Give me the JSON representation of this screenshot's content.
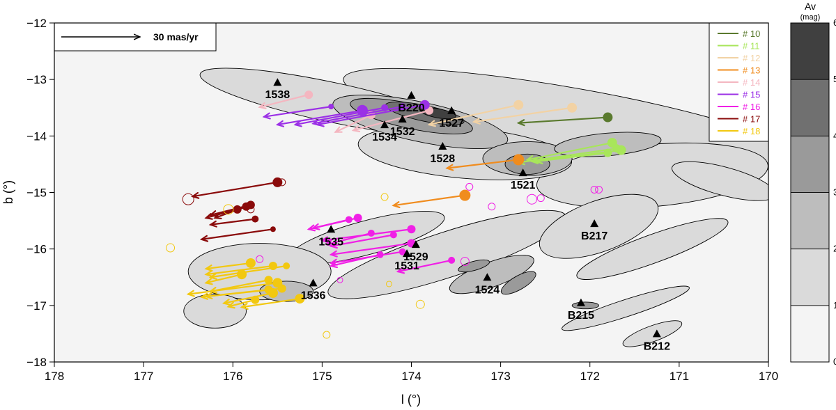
{
  "chart_data": {
    "type": "scatter",
    "xlabel": "l (°)",
    "ylabel": "b (°)",
    "xlim": [
      178,
      170
    ],
    "ylim": [
      -18,
      -12
    ],
    "x_ticks": [
      "178",
      "177",
      "176",
      "175",
      "174",
      "173",
      "172",
      "171",
      "170"
    ],
    "y_ticks": [
      "−12",
      "−13",
      "−14",
      "−15",
      "−16",
      "−17",
      "−18"
    ],
    "scale_bar": {
      "label": "30 mas/yr"
    },
    "colorbar": {
      "title": "Av",
      "unit": "(mag)",
      "ticks": [
        "0",
        "1",
        "2",
        "3",
        "4",
        "5",
        "6"
      ],
      "colors": [
        "#f4f4f4",
        "#dadada",
        "#bdbdbd",
        "#9a9a9a",
        "#707070",
        "#404040"
      ]
    },
    "legend": [
      {
        "label": "# 10",
        "color": "#5a7a2e"
      },
      {
        "label": "# 11",
        "color": "#a8e65a"
      },
      {
        "label": "# 12",
        "color": "#f2d2a4"
      },
      {
        "label": "# 13",
        "color": "#f08c1e"
      },
      {
        "label": "# 14",
        "color": "#f4b6c0"
      },
      {
        "label": "# 15",
        "color": "#9b30e6"
      },
      {
        "label": "# 16",
        "color": "#f020e6"
      },
      {
        "label": "# 17",
        "color": "#8a0a0a"
      },
      {
        "label": "# 18",
        "color": "#f2c810"
      }
    ],
    "cloud_labels": [
      {
        "text": "1538",
        "l": 175.5,
        "b": -13.05
      },
      {
        "text": "B220",
        "l": 174.0,
        "b": -13.28
      },
      {
        "text": "1527",
        "l": 173.55,
        "b": -13.55
      },
      {
        "text": "1532",
        "l": 174.1,
        "b": -13.7
      },
      {
        "text": "1534",
        "l": 174.3,
        "b": -13.8
      },
      {
        "text": "1528",
        "l": 173.65,
        "b": -14.18
      },
      {
        "text": "1521",
        "l": 172.75,
        "b": -14.65
      },
      {
        "text": "1535",
        "l": 174.9,
        "b": -15.65
      },
      {
        "text": "1529",
        "l": 173.95,
        "b": -15.92
      },
      {
        "text": "1531",
        "l": 174.05,
        "b": -16.08
      },
      {
        "text": "B217",
        "l": 171.95,
        "b": -15.55
      },
      {
        "text": "1524",
        "l": 173.15,
        "b": -16.5
      },
      {
        "text": "1536",
        "l": 175.1,
        "b": -16.6
      },
      {
        "text": "B215",
        "l": 172.1,
        "b": -16.95
      },
      {
        "text": "B212",
        "l": 171.25,
        "b": -17.5
      }
    ],
    "groups": [
      {
        "name": "# 10",
        "color": "#5a7a2e",
        "stars": [
          {
            "l": 171.8,
            "b": -13.67,
            "dl": 1.0,
            "db": -0.1,
            "size": 7
          }
        ]
      },
      {
        "name": "# 11",
        "color": "#a8e65a",
        "stars": [
          {
            "l": 171.75,
            "b": -14.12,
            "dl": 0.95,
            "db": -0.3,
            "size": 7
          },
          {
            "l": 171.65,
            "b": -14.25,
            "dl": 1.0,
            "db": -0.2,
            "size": 7
          },
          {
            "l": 171.8,
            "b": -14.3,
            "dl": 0.8,
            "db": -0.15,
            "size": 6
          },
          {
            "l": 171.7,
            "b": -14.22,
            "dl": 1.1,
            "db": -0.25,
            "size": 6
          }
        ]
      },
      {
        "name": "# 12",
        "color": "#f2d2a4",
        "stars": [
          {
            "l": 172.8,
            "b": -13.45,
            "dl": 1.0,
            "db": -0.35,
            "size": 7
          },
          {
            "l": 172.2,
            "b": -13.5,
            "dl": 1.1,
            "db": -0.25,
            "size": 7
          }
        ]
      },
      {
        "name": "# 13",
        "color": "#f08c1e",
        "stars": [
          {
            "l": 172.8,
            "b": -14.42,
            "dl": 0.8,
            "db": -0.15,
            "size": 8
          },
          {
            "l": 173.4,
            "b": -15.05,
            "dl": 0.8,
            "db": -0.18,
            "size": 8
          }
        ]
      },
      {
        "name": "# 14",
        "color": "#f4b6c0",
        "stars": [
          {
            "l": 175.15,
            "b": -13.27,
            "dl": 0.55,
            "db": -0.22,
            "size": 6
          },
          {
            "l": 173.8,
            "b": -13.55,
            "dl": 0.85,
            "db": -0.35,
            "size": 6
          },
          {
            "l": 174.45,
            "b": -13.63,
            "dl": 0.4,
            "db": -0.3,
            "size": 6
          }
        ]
      },
      {
        "name": "# 15",
        "color": "#9b30e6",
        "stars": [
          {
            "l": 174.9,
            "b": -13.48,
            "dl": 0.75,
            "db": -0.18,
            "size": 4
          },
          {
            "l": 174.55,
            "b": -13.55,
            "dl": 0.95,
            "db": -0.25,
            "size": 8
          },
          {
            "l": 174.3,
            "b": -13.5,
            "dl": 1.0,
            "db": -0.3,
            "size": 5
          },
          {
            "l": 173.85,
            "b": -13.45,
            "dl": 1.2,
            "db": -0.35,
            "size": 7
          },
          {
            "l": 174.1,
            "b": -13.48,
            "dl": 1.0,
            "db": -0.3,
            "size": 5
          }
        ]
      },
      {
        "name": "# 16",
        "color": "#f020e6",
        "stars": [
          {
            "l": 174.6,
            "b": -15.45,
            "dl": 0.55,
            "db": -0.2,
            "size": 6
          },
          {
            "l": 174.7,
            "b": -15.48,
            "dl": 0.4,
            "db": -0.15,
            "size": 5
          },
          {
            "l": 174.0,
            "b": -15.65,
            "dl": 1.0,
            "db": -0.2,
            "size": 6
          },
          {
            "l": 174.2,
            "b": -15.75,
            "dl": 0.7,
            "db": -0.2,
            "size": 5
          },
          {
            "l": 174.45,
            "b": -15.72,
            "dl": 0.5,
            "db": -0.2,
            "size": 5
          },
          {
            "l": 174.0,
            "b": -15.9,
            "dl": 0.9,
            "db": -0.2,
            "size": 6
          },
          {
            "l": 174.1,
            "b": -16.05,
            "dl": 0.8,
            "db": -0.2,
            "size": 5
          },
          {
            "l": 174.35,
            "b": -16.1,
            "dl": 0.55,
            "db": -0.2,
            "size": 5
          },
          {
            "l": 173.55,
            "b": -16.2,
            "dl": 0.6,
            "db": -0.2,
            "size": 5
          }
        ]
      },
      {
        "name": "# 17",
        "color": "#8a0a0a",
        "stars": [
          {
            "l": 175.5,
            "b": -14.82,
            "dl": 0.95,
            "db": -0.25,
            "size": 7
          },
          {
            "l": 175.8,
            "b": -15.22,
            "dl": 0.45,
            "db": -0.18,
            "size": 6
          },
          {
            "l": 175.85,
            "b": -15.25,
            "dl": 0.35,
            "db": -0.2,
            "size": 6
          },
          {
            "l": 175.95,
            "b": -15.3,
            "dl": 0.35,
            "db": -0.15,
            "size": 6
          },
          {
            "l": 175.75,
            "b": -15.47,
            "dl": 0.5,
            "db": -0.1,
            "size": 5
          },
          {
            "l": 175.55,
            "b": -15.65,
            "dl": 0.8,
            "db": -0.18,
            "size": 4
          }
        ]
      },
      {
        "name": "# 18",
        "color": "#f2c810",
        "stars": [
          {
            "l": 175.8,
            "b": -16.25,
            "dl": 0.5,
            "db": -0.1,
            "size": 7
          },
          {
            "l": 175.55,
            "b": -16.3,
            "dl": 0.75,
            "db": -0.15,
            "size": 6
          },
          {
            "l": 175.9,
            "b": -16.45,
            "dl": 0.4,
            "db": -0.15,
            "size": 7
          },
          {
            "l": 175.6,
            "b": -16.55,
            "dl": 0.65,
            "db": -0.2,
            "size": 6
          },
          {
            "l": 175.5,
            "b": -16.6,
            "dl": 1.0,
            "db": -0.2,
            "size": 7
          },
          {
            "l": 175.45,
            "b": -16.7,
            "dl": 0.9,
            "db": -0.15,
            "size": 6
          },
          {
            "l": 175.55,
            "b": -16.78,
            "dl": 0.55,
            "db": -0.18,
            "size": 7
          },
          {
            "l": 175.25,
            "b": -16.88,
            "dl": 0.65,
            "db": -0.15,
            "size": 7
          },
          {
            "l": 175.75,
            "b": -16.9,
            "dl": 0.3,
            "db": -0.12,
            "size": 6
          },
          {
            "l": 175.4,
            "b": -16.3,
            "dl": 0.85,
            "db": -0.2,
            "size": 5
          },
          {
            "l": 175.6,
            "b": -16.72,
            "dl": 0.7,
            "db": -0.12,
            "size": 6
          }
        ]
      }
    ],
    "open_circles": [
      {
        "l": 176.5,
        "b": -15.12,
        "color": "#8a0a0a",
        "size": 8
      },
      {
        "l": 175.45,
        "b": -14.82,
        "color": "#8a0a0a",
        "size": 5
      },
      {
        "l": 175.8,
        "b": -15.3,
        "color": "#8a0a0a",
        "size": 5
      },
      {
        "l": 176.05,
        "b": -15.3,
        "color": "#f2c810",
        "size": 7
      },
      {
        "l": 176.7,
        "b": -15.98,
        "color": "#f2c810",
        "size": 6
      },
      {
        "l": 174.3,
        "b": -15.08,
        "color": "#f2c810",
        "size": 5
      },
      {
        "l": 174.25,
        "b": -16.62,
        "color": "#f2c810",
        "size": 4
      },
      {
        "l": 173.9,
        "b": -16.98,
        "color": "#f2c810",
        "size": 6
      },
      {
        "l": 174.95,
        "b": -17.52,
        "color": "#f2c810",
        "size": 5
      },
      {
        "l": 173.35,
        "b": -14.9,
        "color": "#f020e6",
        "size": 5
      },
      {
        "l": 173.1,
        "b": -15.25,
        "color": "#f020e6",
        "size": 5
      },
      {
        "l": 172.65,
        "b": -15.12,
        "color": "#f020e6",
        "size": 7
      },
      {
        "l": 172.55,
        "b": -15.1,
        "color": "#f020e6",
        "size": 5
      },
      {
        "l": 171.95,
        "b": -14.95,
        "color": "#f020e6",
        "size": 5
      },
      {
        "l": 171.9,
        "b": -14.95,
        "color": "#f020e6",
        "size": 5
      },
      {
        "l": 173.4,
        "b": -16.22,
        "color": "#f020e6",
        "size": 6
      },
      {
        "l": 174.8,
        "b": -16.55,
        "color": "#f020e6",
        "size": 4
      },
      {
        "l": 175.7,
        "b": -16.18,
        "color": "#f020e6",
        "size": 5
      }
    ],
    "clouds": [
      {
        "l": 172.2,
        "b": -13.7,
        "rl": 2.6,
        "rb": 0.55,
        "rot": 10,
        "av": 1.5
      },
      {
        "l": 174.9,
        "b": -13.4,
        "rl": 1.5,
        "rb": 0.35,
        "rot": 12,
        "av": 1.5
      },
      {
        "l": 171.3,
        "b": -14.7,
        "rl": 1.3,
        "rb": 0.55,
        "rot": -5,
        "av": 1.5
      },
      {
        "l": 173.4,
        "b": -14.3,
        "rl": 1.2,
        "rb": 0.45,
        "rot": 5,
        "av": 1.5
      },
      {
        "l": 173.9,
        "b": -13.75,
        "rl": 1.0,
        "rb": 0.35,
        "rot": 12,
        "av": 2.5
      },
      {
        "l": 172.7,
        "b": -14.4,
        "rl": 0.5,
        "rb": 0.3,
        "rot": 0,
        "av": 2.5
      },
      {
        "l": 171.8,
        "b": -14.15,
        "rl": 0.6,
        "rb": 0.2,
        "rot": -5,
        "av": 2.5
      },
      {
        "l": 174.0,
        "b": -13.65,
        "rl": 0.7,
        "rb": 0.22,
        "rot": 12,
        "av": 3.5
      },
      {
        "l": 172.7,
        "b": -14.5,
        "rl": 0.25,
        "rb": 0.18,
        "rot": 0,
        "av": 3.5
      },
      {
        "l": 173.85,
        "b": -13.6,
        "rl": 0.45,
        "rb": 0.14,
        "rot": 12,
        "av": 4.5
      },
      {
        "l": 173.7,
        "b": -13.6,
        "rl": 0.2,
        "rb": 0.08,
        "rot": 10,
        "av": 5.5
      },
      {
        "l": 173.6,
        "b": -16.1,
        "rl": 1.4,
        "rb": 0.4,
        "rot": -18,
        "av": 1.5
      },
      {
        "l": 174.5,
        "b": -15.8,
        "rl": 0.9,
        "rb": 0.3,
        "rot": -15,
        "av": 1.5
      },
      {
        "l": 173.1,
        "b": -16.45,
        "rl": 0.5,
        "rb": 0.22,
        "rot": -20,
        "av": 2.5
      },
      {
        "l": 172.8,
        "b": -16.6,
        "rl": 0.22,
        "rb": 0.12,
        "rot": -30,
        "av": 3.5
      },
      {
        "l": 173.3,
        "b": -16.3,
        "rl": 0.18,
        "rb": 0.08,
        "rot": -15,
        "av": 3.5
      },
      {
        "l": 175.7,
        "b": -16.4,
        "rl": 0.8,
        "rb": 0.5,
        "rot": 0,
        "av": 1.5
      },
      {
        "l": 175.4,
        "b": -16.75,
        "rl": 0.3,
        "rb": 0.18,
        "rot": 0,
        "av": 2.5
      },
      {
        "l": 171.9,
        "b": -15.6,
        "rl": 0.7,
        "rb": 0.45,
        "rot": -20,
        "av": 1.5
      },
      {
        "l": 171.3,
        "b": -16.0,
        "rl": 0.9,
        "rb": 0.25,
        "rot": -20,
        "av": 1.5
      },
      {
        "l": 171.6,
        "b": -17.05,
        "rl": 0.75,
        "rb": 0.15,
        "rot": -18,
        "av": 1.5
      },
      {
        "l": 171.3,
        "b": -17.5,
        "rl": 0.35,
        "rb": 0.14,
        "rot": -20,
        "av": 1.5
      },
      {
        "l": 172.05,
        "b": -17.0,
        "rl": 0.15,
        "rb": 0.06,
        "rot": 0,
        "av": 3.5
      },
      {
        "l": 170.5,
        "b": -14.8,
        "rl": 0.6,
        "rb": 0.25,
        "rot": 15,
        "av": 1.5
      },
      {
        "l": 176.2,
        "b": -17.1,
        "rl": 0.35,
        "rb": 0.3,
        "rot": 0,
        "av": 1.5
      }
    ]
  }
}
